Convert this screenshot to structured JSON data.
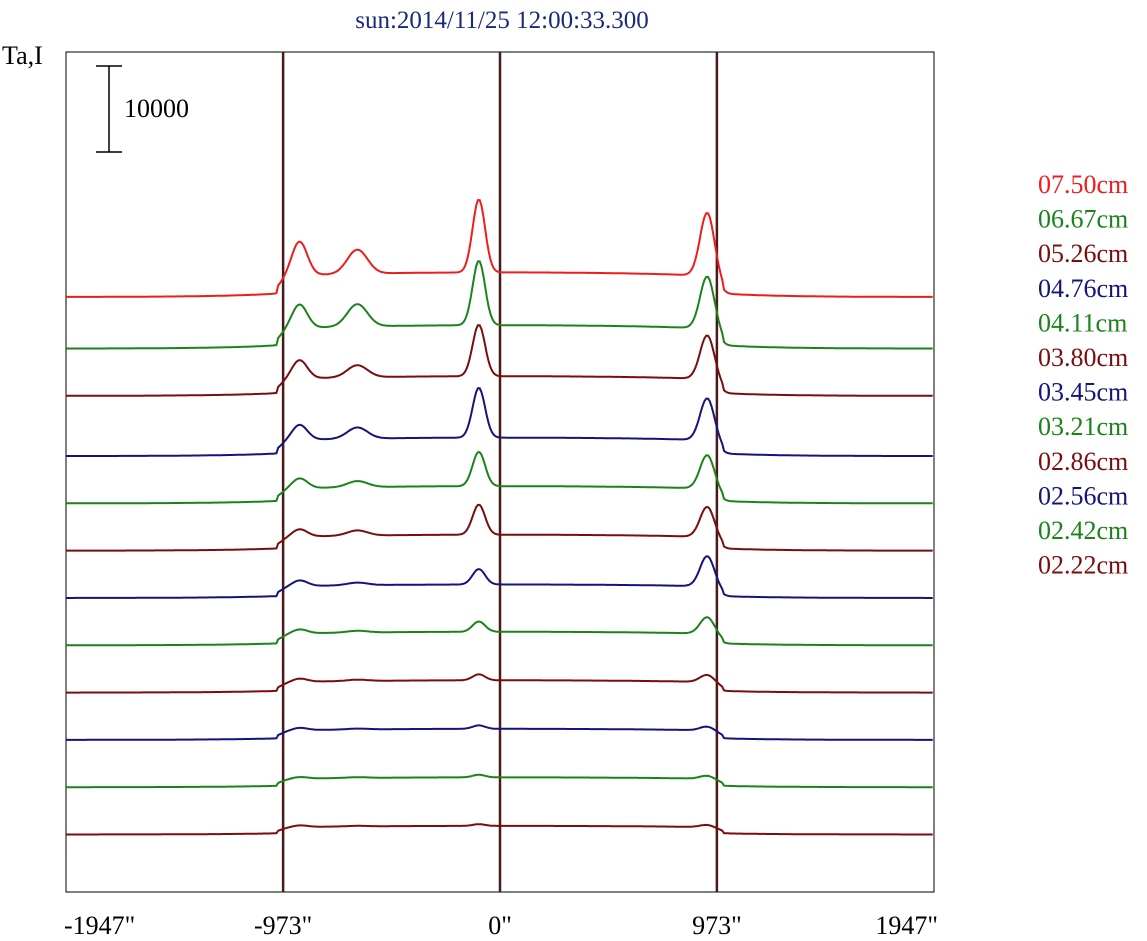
{
  "chart_data": {
    "type": "line",
    "title": "sun:2014/11/25 12:00:33.300",
    "ylabel": "Ta,I",
    "scale_bar_label": "10000",
    "scale_bar_value": 10000,
    "xlim": [
      -1947,
      1947
    ],
    "x_ticks": [
      {
        "value": -1947,
        "label": "-1947\""
      },
      {
        "value": -973,
        "label": "-973\""
      },
      {
        "value": 0,
        "label": "0\""
      },
      {
        "value": 973,
        "label": "973\""
      },
      {
        "value": 1947,
        "label": "1947\""
      }
    ],
    "vertical_lines": [
      -973,
      0,
      973
    ],
    "grid": false,
    "legend_position": "right",
    "legend_colors": [
      "#ee1c1c",
      "#1a841a",
      "#7a0d0d",
      "#14147d",
      "#1a841a",
      "#7a0d0d",
      "#14147d",
      "#1a841a",
      "#7a0d0d",
      "#14147d",
      "#1a841a",
      "#7a0d0d"
    ],
    "legend": [
      "07.50cm",
      "06.67cm",
      "05.26cm",
      "04.76cm",
      "04.11cm",
      "03.80cm",
      "03.45cm",
      "03.21cm",
      "02.86cm",
      "02.56cm",
      "02.42cm",
      "02.22cm"
    ],
    "series": [
      {
        "color": "#ee1c1c",
        "limb": 4000,
        "peak_west": 4000,
        "peak_center": 8500,
        "peak_east": 7500,
        "bump": 2800
      },
      {
        "color": "#1a841a",
        "limb": 3800,
        "peak_west": 2800,
        "peak_center": 7500,
        "peak_east": 6200,
        "bump": 2600
      },
      {
        "color": "#7a0d0d",
        "limb": 3200,
        "peak_west": 2200,
        "peak_center": 6000,
        "peak_east": 5200,
        "bump": 1400
      },
      {
        "color": "#14147d",
        "limb": 3000,
        "peak_west": 1800,
        "peak_center": 5800,
        "peak_east": 5000,
        "bump": 1300
      },
      {
        "color": "#1a841a",
        "limb": 2800,
        "peak_west": 1200,
        "peak_center": 4000,
        "peak_east": 4000,
        "bump": 700
      },
      {
        "color": "#7a0d0d",
        "limb": 2600,
        "peak_west": 900,
        "peak_center": 3500,
        "peak_east": 3600,
        "bump": 600
      },
      {
        "color": "#14147d",
        "limb": 2200,
        "peak_west": 700,
        "peak_center": 1800,
        "peak_east": 3600,
        "bump": 300
      },
      {
        "color": "#1a841a",
        "limb": 2200,
        "peak_west": 500,
        "peak_center": 1200,
        "peak_east": 2000,
        "bump": 200
      },
      {
        "color": "#7a0d0d",
        "limb": 2000,
        "peak_west": 400,
        "peak_center": 700,
        "peak_east": 900,
        "bump": 150
      },
      {
        "color": "#14147d",
        "limb": 1800,
        "peak_west": 300,
        "peak_center": 400,
        "peak_east": 500,
        "bump": 100
      },
      {
        "color": "#1a841a",
        "limb": 1600,
        "peak_west": 200,
        "peak_center": 300,
        "peak_east": 400,
        "bump": 80
      },
      {
        "color": "#7a0d0d",
        "limb": 1400,
        "peak_west": 200,
        "peak_center": 200,
        "peak_east": 300,
        "bump": 60
      }
    ],
    "series_baselines": [
      0,
      -6000,
      -11500,
      -18500,
      -24000,
      -29500,
      -35000,
      -40500,
      -46000,
      -51500,
      -57000,
      -62500,
      -67500
    ]
  }
}
